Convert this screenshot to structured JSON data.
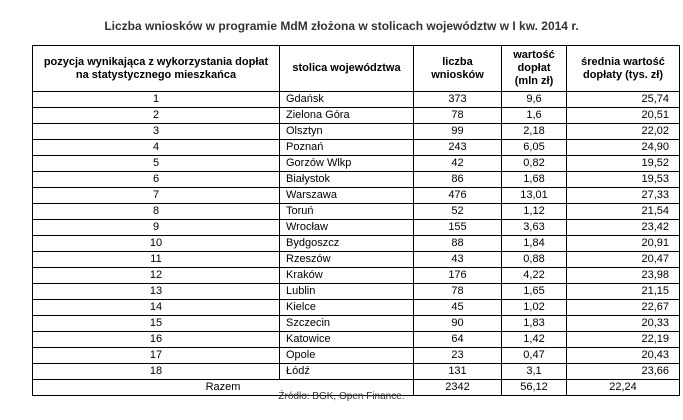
{
  "title": "Liczba wniosków w programie MdM złożona w stolicach województw w I kw. 2014 r.",
  "table": {
    "headers": [
      "pozycja wynikająca z wykorzystania dopłat na statystycznego mieszkańca",
      "stolica województwa",
      "liczba wniosków",
      "wartość dopłat (mln zł)",
      "średnia wartość dopłaty (tys. zł)"
    ],
    "rows": [
      [
        "1",
        "Gdańsk",
        "373",
        "9,6",
        "25,74"
      ],
      [
        "2",
        "Zielona Góra",
        "78",
        "1,6",
        "20,51"
      ],
      [
        "3",
        "Olsztyn",
        "99",
        "2,18",
        "22,02"
      ],
      [
        "4",
        "Poznań",
        "243",
        "6,05",
        "24,90"
      ],
      [
        "5",
        "Gorzów Wlkp",
        "42",
        "0,82",
        "19,52"
      ],
      [
        "6",
        "Białystok",
        "86",
        "1,68",
        "19,53"
      ],
      [
        "7",
        "Warszawa",
        "476",
        "13,01",
        "27,33"
      ],
      [
        "8",
        "Toruń",
        "52",
        "1,12",
        "21,54"
      ],
      [
        "9",
        "Wrocław",
        "155",
        "3,63",
        "23,42"
      ],
      [
        "10",
        "Bydgoszcz",
        "88",
        "1,84",
        "20,91"
      ],
      [
        "11",
        "Rzeszów",
        "43",
        "0,88",
        "20,47"
      ],
      [
        "12",
        "Kraków",
        "176",
        "4,22",
        "23,98"
      ],
      [
        "13",
        "Lublin",
        "78",
        "1,65",
        "21,15"
      ],
      [
        "14",
        "Kielce",
        "45",
        "1,02",
        "22,67"
      ],
      [
        "15",
        "Szczecin",
        "90",
        "1,83",
        "20,33"
      ],
      [
        "16",
        "Katowice",
        "64",
        "1,42",
        "22,19"
      ],
      [
        "17",
        "Opole",
        "23",
        "0,47",
        "20,43"
      ],
      [
        "18",
        "Łódź",
        "131",
        "3,1",
        "23,66"
      ]
    ],
    "total": [
      "Razem",
      "2342",
      "56,12",
      "22,24"
    ]
  },
  "source": "Źródło: BGK, Open Finance."
}
